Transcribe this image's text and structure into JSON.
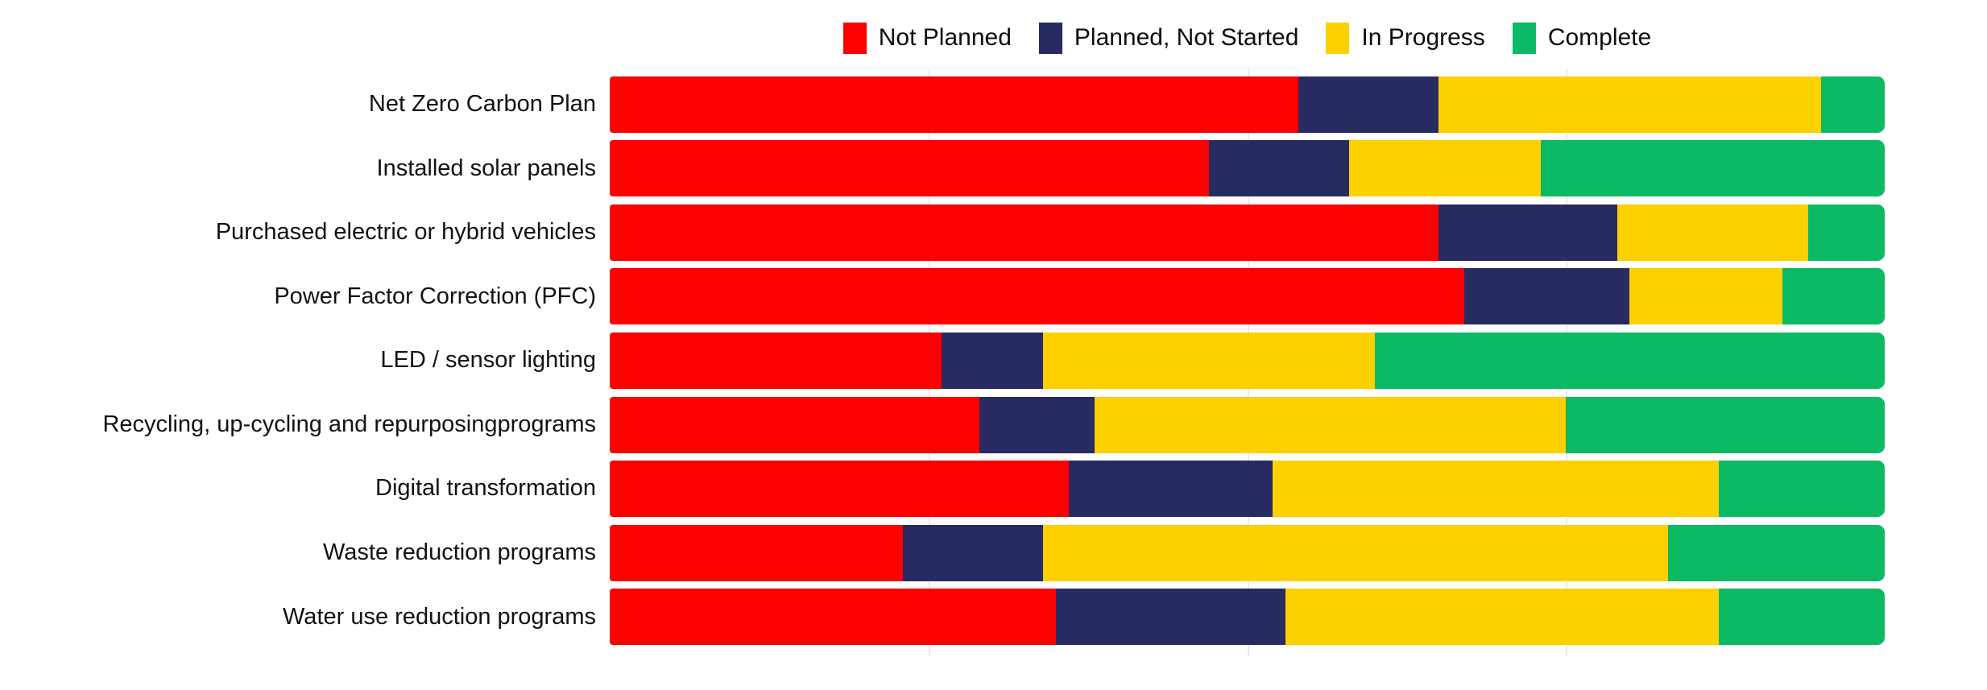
{
  "chart_data": {
    "type": "bar",
    "orientation": "horizontal",
    "stacked": true,
    "unit": "percent_of_bar",
    "title": "",
    "xlabel": "",
    "ylabel": "",
    "xlim": [
      0,
      100
    ],
    "grid": "vertical",
    "gridlines_pct": [
      25,
      50,
      75
    ],
    "legend_position": "top-center",
    "background_color": "#ffffff",
    "categories": [
      "Net Zero Carbon Plan",
      "Installed solar panels",
      "Purchased electric or hybrid vehicles",
      "Power Factor Correction (PFC)",
      "LED / sensor lighting",
      "Recycling, up-cycling and repurposingprograms",
      "Digital transformation",
      "Waste reduction programs",
      "Water use reduction programs"
    ],
    "series": [
      {
        "name": "Not Planned",
        "color": "#fb0100",
        "values": [
          54,
          47,
          65,
          67,
          26,
          29,
          36,
          23,
          35
        ]
      },
      {
        "name": "Planned, Not Started",
        "color": "#282a62",
        "values": [
          11,
          11,
          14,
          13,
          8,
          9,
          16,
          11,
          18
        ]
      },
      {
        "name": "In Progress",
        "color": "#fdd000",
        "values": [
          30,
          15,
          15,
          12,
          26,
          37,
          35,
          49,
          34
        ]
      },
      {
        "name": "Complete",
        "color": "#0cb964",
        "values": [
          5,
          27,
          6,
          8,
          40,
          25,
          13,
          17,
          13
        ]
      }
    ]
  }
}
